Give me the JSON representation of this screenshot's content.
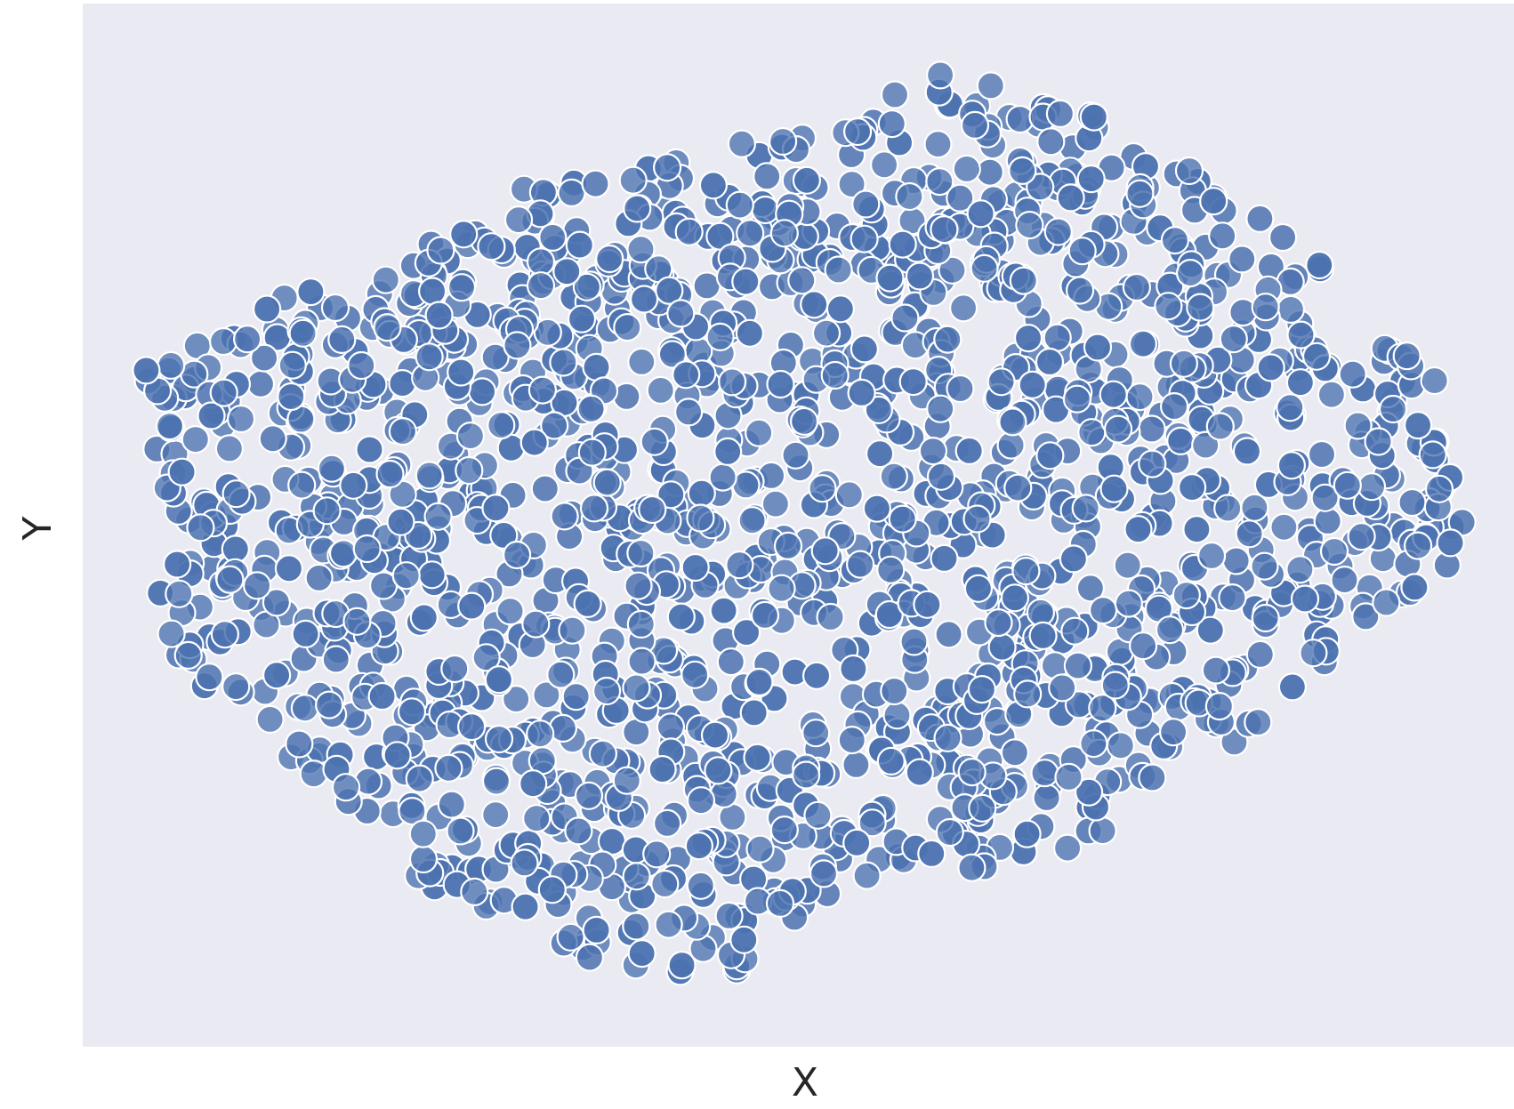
{
  "chart_data": {
    "type": "scatter",
    "title": "",
    "xlabel": "X",
    "ylabel": "Y",
    "xlim": [
      -62,
      62
    ],
    "ylim": [
      -62,
      62
    ],
    "grid": false,
    "legend": "none",
    "background_color": "#eaeaf2",
    "point_color": "#4c72b0",
    "point_edge_color": "#ffffff",
    "point_count_approx": 1800,
    "ticks_visible": false,
    "outliers": [
      {
        "x": -56.5,
        "y": 18.4
      },
      {
        "x": -51.8,
        "y": -0.3
      },
      {
        "x": 56.5,
        "y": -2.1
      }
    ],
    "cluster_boundary": [
      {
        "x": -57,
        "y": 18
      },
      {
        "x": -48,
        "y": 26
      },
      {
        "x": -36,
        "y": 30
      },
      {
        "x": -24,
        "y": 40
      },
      {
        "x": -10,
        "y": 44
      },
      {
        "x": 4,
        "y": 48
      },
      {
        "x": 12,
        "y": 54
      },
      {
        "x": 22,
        "y": 51
      },
      {
        "x": 34,
        "y": 43
      },
      {
        "x": 46,
        "y": 30
      },
      {
        "x": 56,
        "y": 17
      },
      {
        "x": 58,
        "y": -3
      },
      {
        "x": 46,
        "y": -16
      },
      {
        "x": 34,
        "y": -31
      },
      {
        "x": 20,
        "y": -41
      },
      {
        "x": 4,
        "y": -43
      },
      {
        "x": -6,
        "y": -54
      },
      {
        "x": -18,
        "y": -52
      },
      {
        "x": -32,
        "y": -43
      },
      {
        "x": -44,
        "y": -28
      },
      {
        "x": -55,
        "y": -15
      }
    ]
  }
}
